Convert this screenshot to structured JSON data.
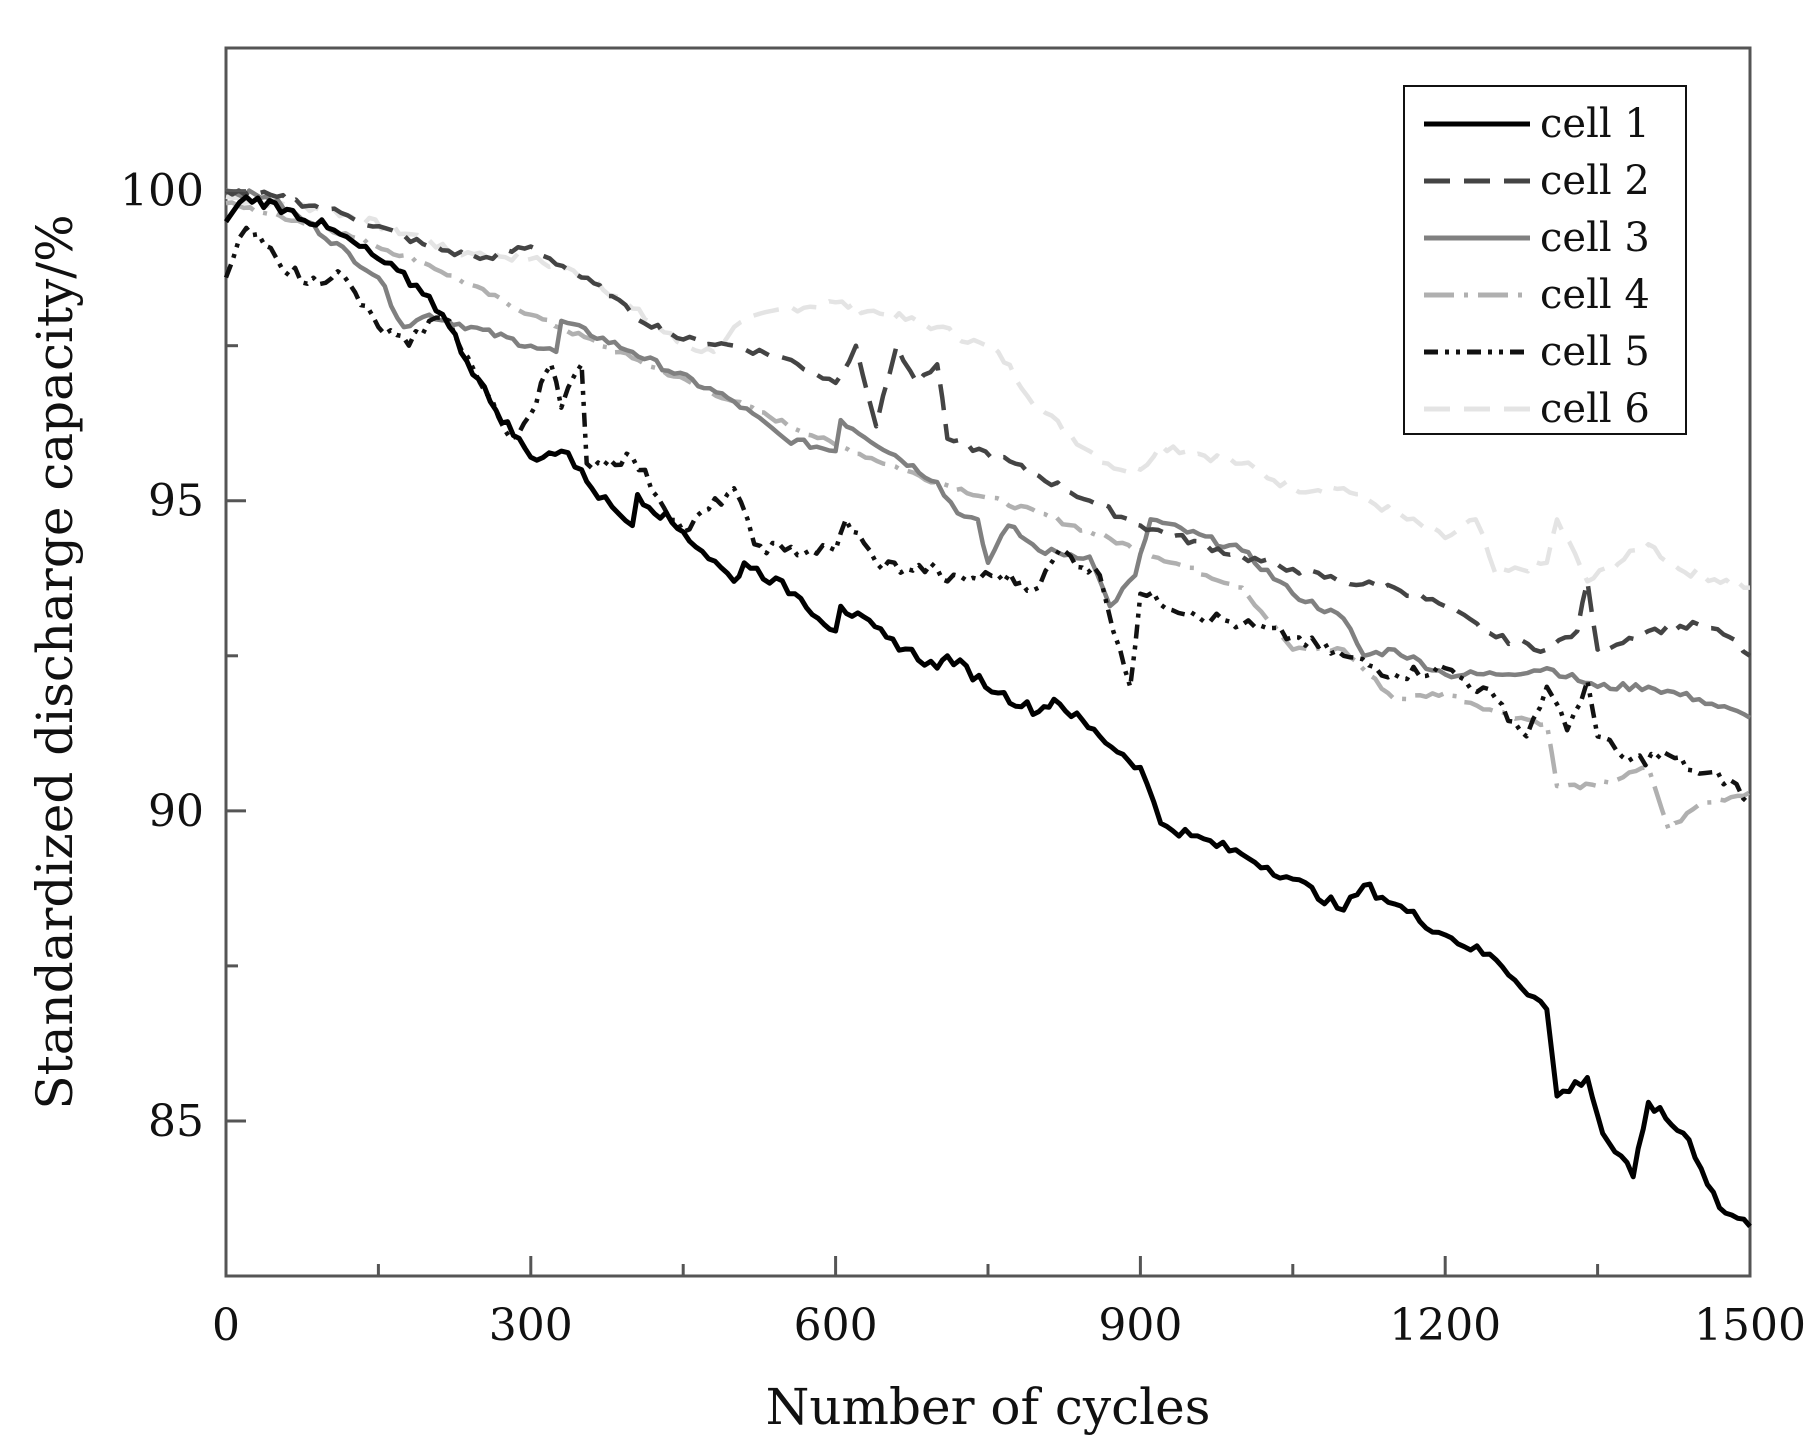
{
  "chart_data": {
    "type": "line",
    "xlabel": "Number of cycles",
    "ylabel": "Standardized discharge capacity/%",
    "xlim": [
      0,
      1500
    ],
    "ylim": [
      82.5,
      102.3
    ],
    "xticks": [
      0,
      300,
      600,
      900,
      1200,
      1500
    ],
    "xtick_labels": [
      "0",
      "300",
      "600",
      "900",
      "1200",
      "1500"
    ],
    "yticks": [
      85,
      90,
      95,
      100
    ],
    "ytick_labels": [
      "85",
      "90",
      "95",
      "100"
    ],
    "minor_xticks": [
      150,
      450,
      750,
      1050,
      1350
    ],
    "minor_yticks": [
      82.5,
      87.5,
      92.5,
      97.5
    ],
    "grid": false,
    "legend_position": "top-right",
    "series": [
      {
        "name": "cell 1",
        "color": "#000000",
        "dash": "solid",
        "points": [
          [
            0,
            99.5
          ],
          [
            20,
            99.9
          ],
          [
            60,
            99.7
          ],
          [
            100,
            99.4
          ],
          [
            150,
            98.9
          ],
          [
            200,
            98.3
          ],
          [
            220,
            97.8
          ],
          [
            260,
            96.6
          ],
          [
            300,
            95.7
          ],
          [
            330,
            95.8
          ],
          [
            350,
            95.5
          ],
          [
            360,
            95.2
          ],
          [
            380,
            94.9
          ],
          [
            400,
            94.6
          ],
          [
            405,
            95.1
          ],
          [
            450,
            94.5
          ],
          [
            500,
            93.7
          ],
          [
            510,
            94.0
          ],
          [
            560,
            93.5
          ],
          [
            600,
            92.9
          ],
          [
            605,
            93.3
          ],
          [
            650,
            92.8
          ],
          [
            700,
            92.3
          ],
          [
            710,
            92.5
          ],
          [
            760,
            91.9
          ],
          [
            800,
            91.6
          ],
          [
            815,
            91.8
          ],
          [
            860,
            91.2
          ],
          [
            900,
            90.7
          ],
          [
            920,
            89.8
          ],
          [
            950,
            89.6
          ],
          [
            1000,
            89.3
          ],
          [
            1050,
            88.9
          ],
          [
            1100,
            88.4
          ],
          [
            1120,
            88.8
          ],
          [
            1150,
            88.5
          ],
          [
            1200,
            88.0
          ],
          [
            1250,
            87.6
          ],
          [
            1300,
            86.8
          ],
          [
            1310,
            85.4
          ],
          [
            1340,
            85.7
          ],
          [
            1355,
            84.8
          ],
          [
            1385,
            84.1
          ],
          [
            1400,
            85.3
          ],
          [
            1440,
            84.7
          ],
          [
            1470,
            83.6
          ],
          [
            1500,
            83.3
          ]
        ]
      },
      {
        "name": "cell 2",
        "color": "#444444",
        "dash": "dashed",
        "points": [
          [
            0,
            100.0
          ],
          [
            50,
            99.9
          ],
          [
            100,
            99.7
          ],
          [
            120,
            99.6
          ],
          [
            200,
            99.1
          ],
          [
            250,
            98.9
          ],
          [
            300,
            99.1
          ],
          [
            350,
            98.6
          ],
          [
            380,
            98.3
          ],
          [
            400,
            98.0
          ],
          [
            450,
            97.6
          ],
          [
            500,
            97.5
          ],
          [
            550,
            97.3
          ],
          [
            600,
            96.9
          ],
          [
            620,
            97.5
          ],
          [
            640,
            96.2
          ],
          [
            660,
            97.5
          ],
          [
            680,
            96.9
          ],
          [
            700,
            97.2
          ],
          [
            710,
            96.0
          ],
          [
            760,
            95.7
          ],
          [
            800,
            95.4
          ],
          [
            850,
            95.0
          ],
          [
            900,
            94.6
          ],
          [
            1000,
            94.1
          ],
          [
            1050,
            93.9
          ],
          [
            1100,
            93.7
          ],
          [
            1150,
            93.6
          ],
          [
            1200,
            93.3
          ],
          [
            1250,
            92.8
          ],
          [
            1300,
            92.6
          ],
          [
            1330,
            92.9
          ],
          [
            1340,
            93.7
          ],
          [
            1350,
            92.6
          ],
          [
            1400,
            92.9
          ],
          [
            1450,
            93.0
          ],
          [
            1480,
            92.8
          ],
          [
            1500,
            92.5
          ]
        ]
      },
      {
        "name": "cell 3",
        "color": "#808080",
        "dash": "solid",
        "points": [
          [
            0,
            100.0
          ],
          [
            40,
            99.9
          ],
          [
            80,
            99.5
          ],
          [
            150,
            98.6
          ],
          [
            175,
            97.8
          ],
          [
            200,
            98.0
          ],
          [
            300,
            97.5
          ],
          [
            325,
            97.4
          ],
          [
            330,
            97.9
          ],
          [
            400,
            97.4
          ],
          [
            500,
            96.6
          ],
          [
            550,
            96.0
          ],
          [
            600,
            95.8
          ],
          [
            605,
            96.3
          ],
          [
            700,
            95.3
          ],
          [
            720,
            94.8
          ],
          [
            740,
            94.7
          ],
          [
            750,
            94.0
          ],
          [
            770,
            94.6
          ],
          [
            800,
            94.2
          ],
          [
            850,
            94.1
          ],
          [
            870,
            93.3
          ],
          [
            895,
            93.8
          ],
          [
            910,
            94.7
          ],
          [
            1000,
            94.2
          ],
          [
            1050,
            93.5
          ],
          [
            1100,
            93.1
          ],
          [
            1120,
            92.5
          ],
          [
            1150,
            92.6
          ],
          [
            1200,
            92.2
          ],
          [
            1250,
            92.2
          ],
          [
            1300,
            92.3
          ],
          [
            1350,
            92.0
          ],
          [
            1400,
            92.0
          ],
          [
            1450,
            91.8
          ],
          [
            1500,
            91.5
          ]
        ]
      },
      {
        "name": "cell 4",
        "color": "#b0b0b0",
        "dash": "dashdot",
        "points": [
          [
            0,
            99.8
          ],
          [
            100,
            99.4
          ],
          [
            200,
            98.8
          ],
          [
            300,
            98.0
          ],
          [
            400,
            97.3
          ],
          [
            500,
            96.6
          ],
          [
            600,
            95.9
          ],
          [
            700,
            95.3
          ],
          [
            800,
            94.8
          ],
          [
            900,
            94.2
          ],
          [
            1000,
            93.6
          ],
          [
            1050,
            92.6
          ],
          [
            1100,
            92.6
          ],
          [
            1150,
            91.8
          ],
          [
            1200,
            91.9
          ],
          [
            1250,
            91.6
          ],
          [
            1300,
            91.4
          ],
          [
            1310,
            90.4
          ],
          [
            1350,
            90.4
          ],
          [
            1400,
            90.7
          ],
          [
            1420,
            89.7
          ],
          [
            1450,
            90.1
          ],
          [
            1500,
            90.3
          ]
        ]
      },
      {
        "name": "cell 5",
        "color": "#111111",
        "dash": "dashdotdot",
        "points": [
          [
            0,
            98.6
          ],
          [
            20,
            99.4
          ],
          [
            50,
            98.9
          ],
          [
            80,
            98.5
          ],
          [
            110,
            98.7
          ],
          [
            150,
            97.8
          ],
          [
            180,
            97.5
          ],
          [
            200,
            97.9
          ],
          [
            220,
            97.9
          ],
          [
            250,
            96.9
          ],
          [
            280,
            96.0
          ],
          [
            300,
            96.4
          ],
          [
            310,
            96.9
          ],
          [
            320,
            97.2
          ],
          [
            330,
            96.5
          ],
          [
            350,
            97.2
          ],
          [
            355,
            95.6
          ],
          [
            400,
            95.7
          ],
          [
            450,
            94.5
          ],
          [
            500,
            95.2
          ],
          [
            520,
            94.3
          ],
          [
            550,
            94.2
          ],
          [
            600,
            94.2
          ],
          [
            610,
            94.7
          ],
          [
            640,
            94.0
          ],
          [
            670,
            93.9
          ],
          [
            700,
            93.9
          ],
          [
            710,
            93.7
          ],
          [
            760,
            93.8
          ],
          [
            800,
            93.6
          ],
          [
            820,
            94.2
          ],
          [
            860,
            93.8
          ],
          [
            880,
            92.6
          ],
          [
            890,
            92.0
          ],
          [
            900,
            93.5
          ],
          [
            950,
            93.2
          ],
          [
            1000,
            93.0
          ],
          [
            1050,
            92.8
          ],
          [
            1100,
            92.5
          ],
          [
            1150,
            92.2
          ],
          [
            1200,
            92.3
          ],
          [
            1250,
            91.8
          ],
          [
            1280,
            91.2
          ],
          [
            1300,
            92.0
          ],
          [
            1320,
            91.3
          ],
          [
            1340,
            92.1
          ],
          [
            1350,
            91.2
          ],
          [
            1380,
            90.8
          ],
          [
            1420,
            90.9
          ],
          [
            1450,
            90.6
          ],
          [
            1480,
            90.5
          ],
          [
            1500,
            90.1
          ]
        ]
      },
      {
        "name": "cell 6",
        "color": "#e4e4e4",
        "dash": "dashed",
        "points": [
          [
            0,
            99.9
          ],
          [
            100,
            99.7
          ],
          [
            200,
            99.2
          ],
          [
            220,
            99.0
          ],
          [
            250,
            99.0
          ],
          [
            300,
            98.9
          ],
          [
            360,
            98.6
          ],
          [
            400,
            98.1
          ],
          [
            450,
            97.5
          ],
          [
            480,
            97.4
          ],
          [
            500,
            97.8
          ],
          [
            550,
            98.1
          ],
          [
            600,
            98.2
          ],
          [
            650,
            98.0
          ],
          [
            700,
            97.8
          ],
          [
            760,
            97.4
          ],
          [
            800,
            96.5
          ],
          [
            850,
            95.8
          ],
          [
            880,
            95.5
          ],
          [
            900,
            95.5
          ],
          [
            920,
            95.9
          ],
          [
            1000,
            95.6
          ],
          [
            1050,
            95.2
          ],
          [
            1100,
            95.2
          ],
          [
            1150,
            94.8
          ],
          [
            1200,
            94.4
          ],
          [
            1230,
            94.7
          ],
          [
            1250,
            93.8
          ],
          [
            1300,
            94.0
          ],
          [
            1310,
            94.7
          ],
          [
            1340,
            93.7
          ],
          [
            1400,
            94.3
          ],
          [
            1430,
            93.9
          ],
          [
            1500,
            93.6
          ]
        ]
      }
    ]
  }
}
